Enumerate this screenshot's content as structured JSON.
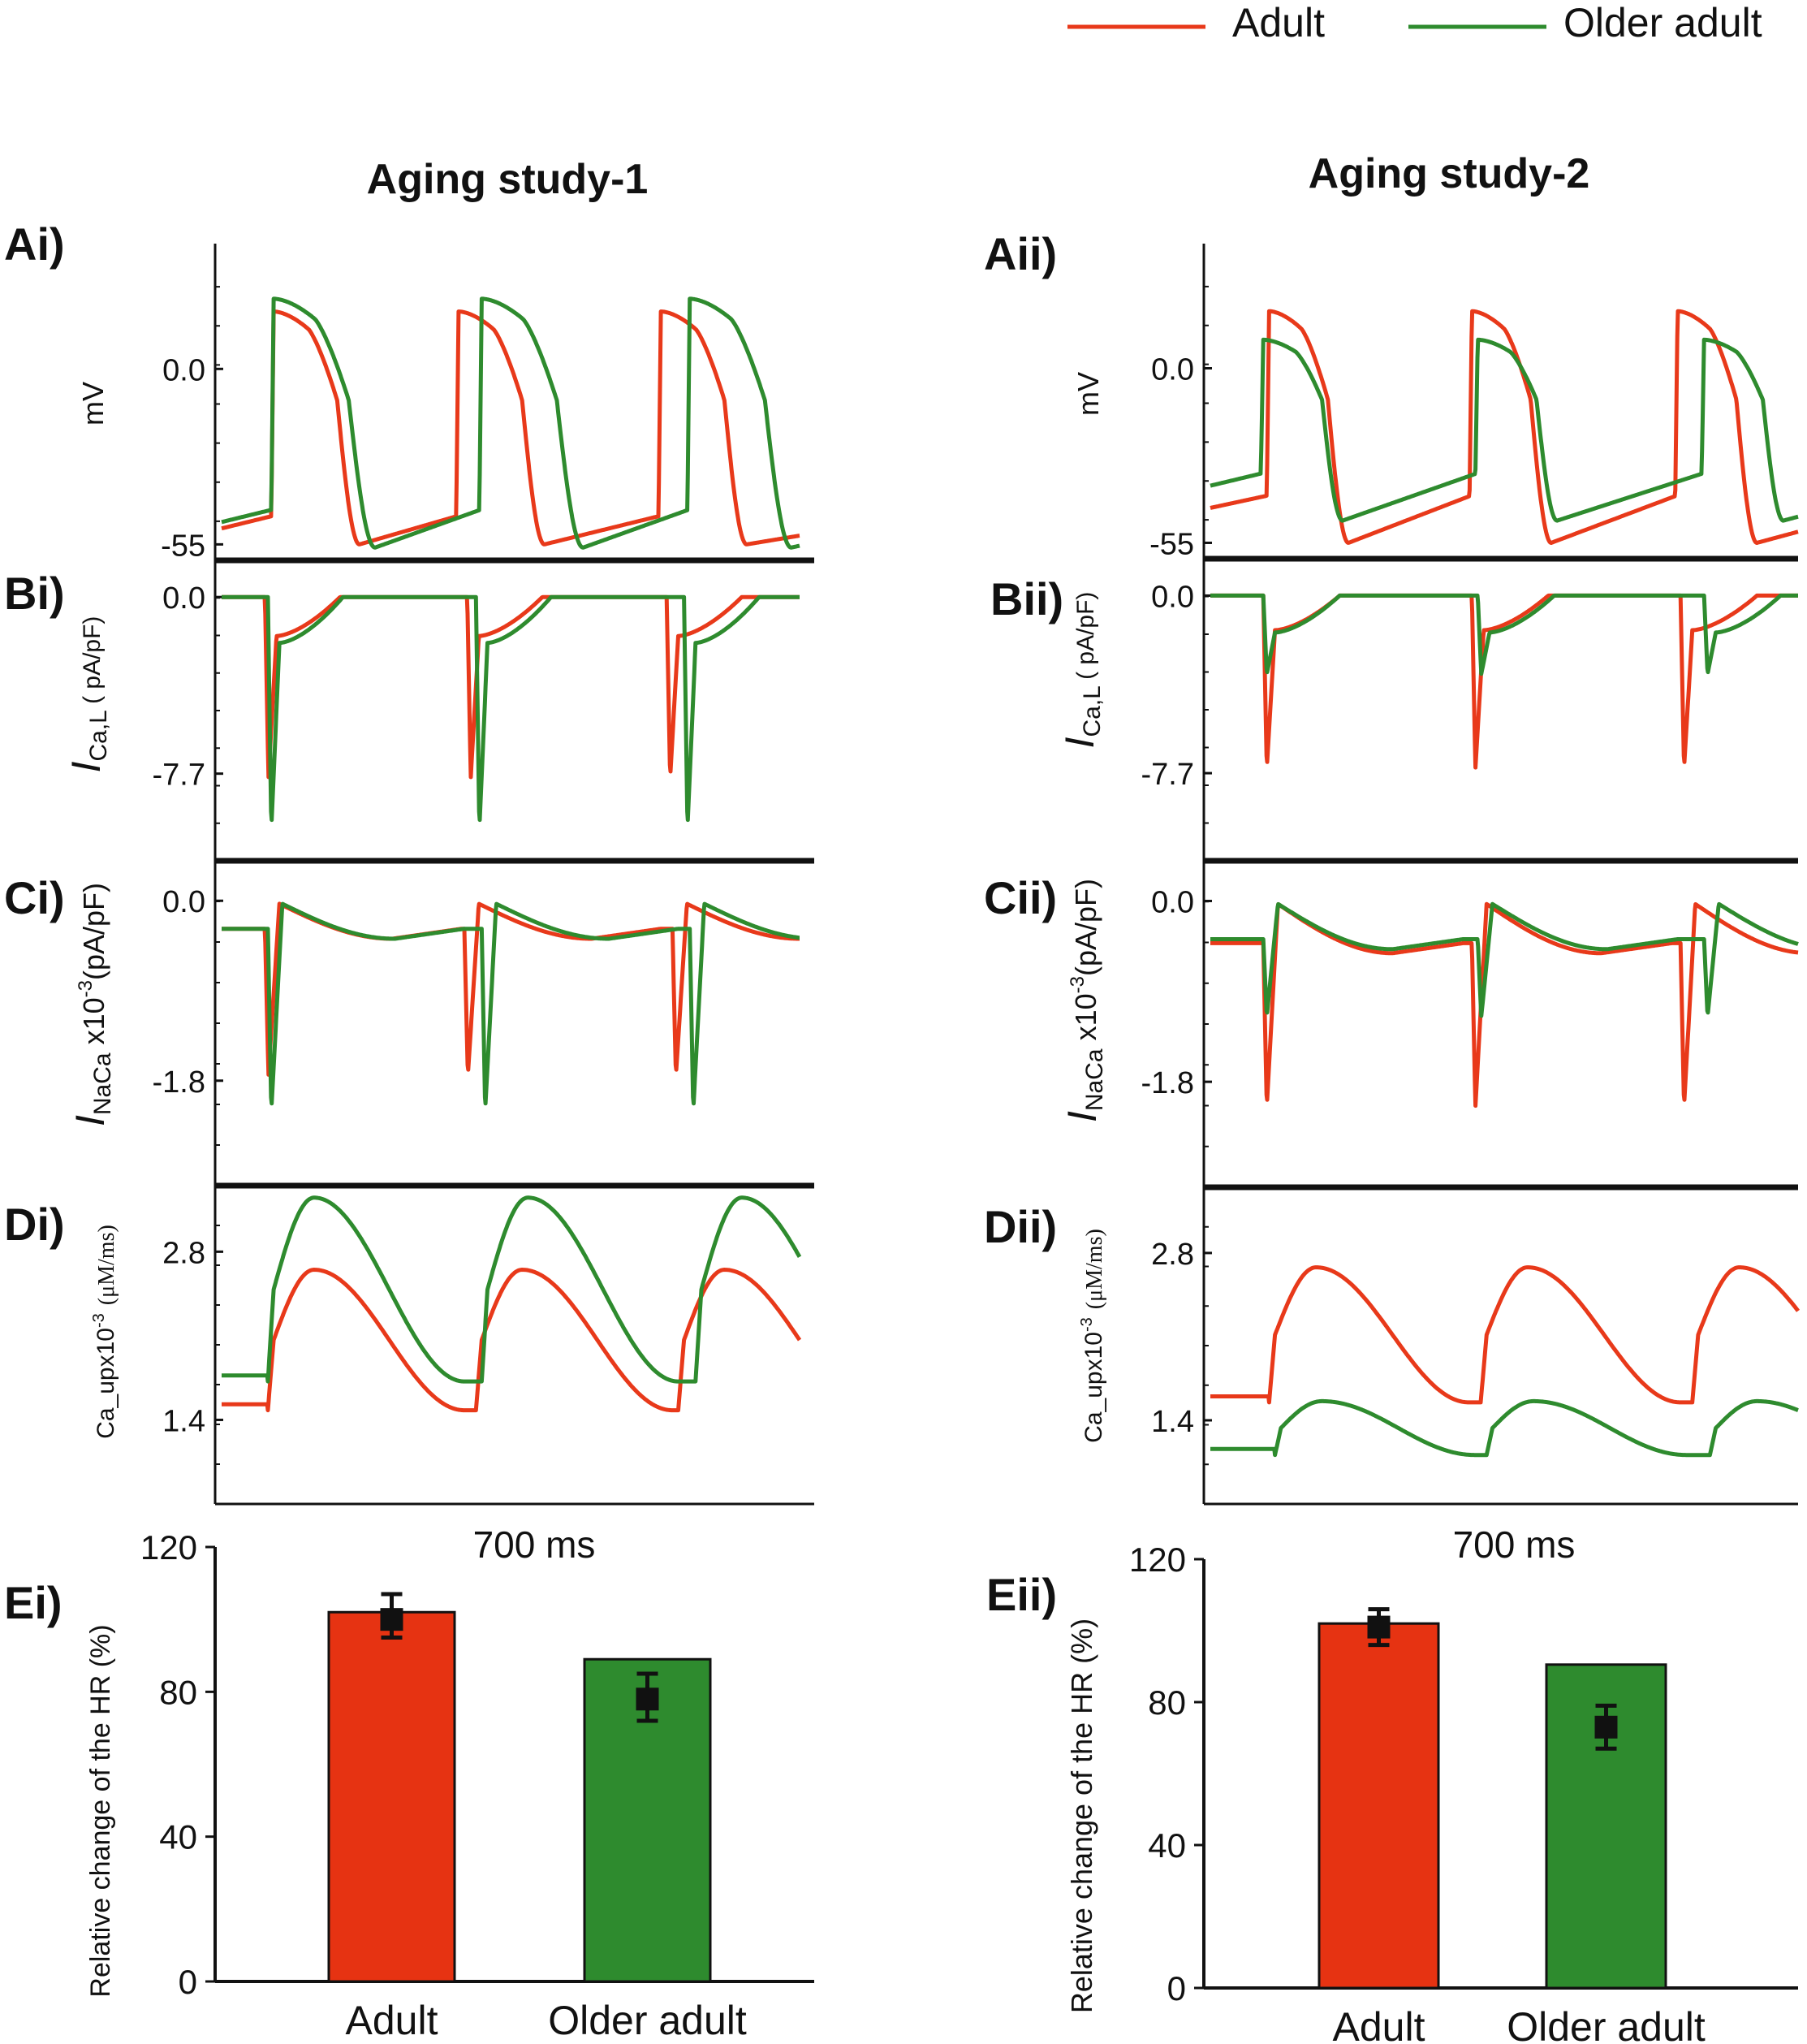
{
  "legend": {
    "entries": [
      {
        "name": "Adult",
        "color": "#e8391a"
      },
      {
        "name": "Older adult",
        "color": "#2e8b2e"
      }
    ]
  },
  "colors": {
    "adult": "#e8391a",
    "older": "#2e8b2e",
    "adult_bar": "#e63312",
    "older_bar": "#2e8b2e",
    "axis": "#111111"
  },
  "columns": [
    {
      "title": "Aging study-1",
      "time_label": "700 ms"
    },
    {
      "title": "Aging study-2",
      "time_label": "700 ms"
    }
  ],
  "ylabels": {
    "A": "mV",
    "B_main": "I",
    "B_sub": "Ca,L",
    "B_unit": " ( pA/pF)",
    "C_main": "I",
    "C_sub": "NaCa",
    "C_mid": " x10",
    "C_sup": "-3",
    "C_unit": "(pA/pF)",
    "D_main": "Ca_upx10",
    "D_sup": "-3",
    "D_unit": "(μM/ms)",
    "E": "Relative change of the HR (%)"
  },
  "panel_labels": {
    "col1": [
      "Ai)",
      "Bi)",
      "Ci)",
      "Di)",
      "Ei)"
    ],
    "col2": [
      "Aii)",
      "Bii)",
      "Cii)",
      "Dii)",
      "Eii)"
    ]
  },
  "chart_data": [
    {
      "id": "Ai",
      "type": "line",
      "ylabel": "mV",
      "ticks": [
        "0.0",
        "-55"
      ],
      "tick_values": [
        0,
        -55
      ],
      "ylim": [
        -60,
        38
      ],
      "series": [
        {
          "name": "Adult",
          "color": "#e8391a",
          "beat_times": [
            0.09,
            0.41,
            0.76
          ],
          "rest": -46,
          "peak": 18,
          "apd": 0.11,
          "valley": -55
        },
        {
          "name": "Older adult",
          "color": "#2e8b2e",
          "beat_times": [
            0.09,
            0.45,
            0.81
          ],
          "rest": -44,
          "peak": 22,
          "apd": 0.13,
          "valley": -56
        }
      ]
    },
    {
      "id": "Bi",
      "type": "line",
      "ylabel": "I Ca,L (pA/pF)",
      "ticks": [
        "0.0",
        "-7.7"
      ],
      "tick_values": [
        0,
        -7.7
      ],
      "ylim": [
        -11.5,
        1.6
      ],
      "series": [
        {
          "name": "Adult",
          "color": "#e8391a",
          "beat_times": [
            0.075,
            0.425,
            0.77
          ],
          "min": -7.9,
          "plateau": -1.7
        },
        {
          "name": "Older adult",
          "color": "#2e8b2e",
          "beat_times": [
            0.08,
            0.44,
            0.8
          ],
          "min": -10.1,
          "plateau": -2.0
        }
      ]
    },
    {
      "id": "Ci",
      "type": "line",
      "ylabel": "I NaCa x10^-3 (pA/pF)",
      "ticks": [
        "0.0",
        "-1.8"
      ],
      "tick_values": [
        0,
        -1.8
      ],
      "ylim": [
        -2.85,
        0.4
      ],
      "series": [
        {
          "name": "Adult",
          "color": "#e8391a",
          "beat_times": [
            0.075,
            0.42,
            0.78
          ],
          "min": -1.75,
          "baseline": -0.28
        },
        {
          "name": "Older adult",
          "color": "#2e8b2e",
          "beat_times": [
            0.08,
            0.45,
            0.81
          ],
          "min": -2.1,
          "baseline": -0.28
        }
      ]
    },
    {
      "id": "Di",
      "type": "line",
      "ylabel": "Ca_upx10^-3 (μM/ms)",
      "ticks": [
        "2.8",
        "1.4"
      ],
      "tick_values": [
        2.8,
        1.4
      ],
      "ylim": [
        0.7,
        3.35
      ],
      "series": [
        {
          "name": "Adult",
          "color": "#e8391a",
          "beat_times": [
            0.08,
            0.44,
            0.79
          ],
          "min": 1.48,
          "max": 2.65
        },
        {
          "name": "Older adult",
          "color": "#2e8b2e",
          "beat_times": [
            0.08,
            0.45,
            0.82
          ],
          "min": 1.72,
          "max": 3.25
        }
      ]
    },
    {
      "id": "Aii",
      "type": "line",
      "ylabel": "mV",
      "ticks": [
        "0.0",
        "-55"
      ],
      "tick_values": [
        0,
        -55
      ],
      "ylim": [
        -60,
        38
      ],
      "series": [
        {
          "name": "Adult",
          "color": "#e8391a",
          "beat_times": [
            0.1,
            0.445,
            0.795
          ],
          "rest": -40,
          "peak": 18,
          "apd": 0.1,
          "valley": -55
        },
        {
          "name": "Older adult",
          "color": "#2e8b2e",
          "beat_times": [
            0.09,
            0.455,
            0.84
          ],
          "rest": -33,
          "peak": 9,
          "apd": 0.1,
          "valley": -48
        }
      ]
    },
    {
      "id": "Bii",
      "type": "line",
      "ylabel": "I Ca,L (pA/pF)",
      "ticks": [
        "0.0",
        "-7.7"
      ],
      "tick_values": [
        0,
        -7.7
      ],
      "ylim": [
        -11.5,
        1.6
      ],
      "series": [
        {
          "name": "Adult",
          "color": "#e8391a",
          "beat_times": [
            0.09,
            0.445,
            0.8
          ],
          "min": -7.5,
          "plateau": -1.5
        },
        {
          "name": "Older adult",
          "color": "#2e8b2e",
          "beat_times": [
            0.09,
            0.455,
            0.84
          ],
          "min": -3.4,
          "plateau": -1.6
        }
      ]
    },
    {
      "id": "Cii",
      "type": "line",
      "ylabel": "I NaCa x10^-3 (pA/pF)",
      "ticks": [
        "0.0",
        "-1.8"
      ],
      "tick_values": [
        0,
        -1.8
      ],
      "ylim": [
        -2.85,
        0.4
      ],
      "series": [
        {
          "name": "Adult",
          "color": "#e8391a",
          "beat_times": [
            0.09,
            0.445,
            0.8
          ],
          "min": -2.05,
          "baseline": -0.42
        },
        {
          "name": "Older adult",
          "color": "#2e8b2e",
          "beat_times": [
            0.09,
            0.455,
            0.84
          ],
          "min": -1.15,
          "baseline": -0.38
        }
      ]
    },
    {
      "id": "Dii",
      "type": "line",
      "ylabel": "Ca_upx10^-3 (μM/ms)",
      "ticks": [
        "2.8",
        "1.4"
      ],
      "tick_values": [
        2.8,
        1.4
      ],
      "ylim": [
        0.7,
        3.35
      ],
      "series": [
        {
          "name": "Adult",
          "color": "#e8391a",
          "beat_times": [
            0.1,
            0.46,
            0.82
          ],
          "min": 1.55,
          "max": 2.68
        },
        {
          "name": "Older adult",
          "color": "#2e8b2e",
          "beat_times": [
            0.11,
            0.47,
            0.85
          ],
          "min": 1.11,
          "max": 1.56
        }
      ]
    },
    {
      "id": "Ei",
      "type": "bar",
      "ylabel": "Relative change of the HR (%)",
      "ylim": [
        0,
        120
      ],
      "yticks": [
        0,
        40,
        80,
        120
      ],
      "categories": [
        "Adult",
        "Older adult"
      ],
      "values": [
        102,
        89
      ],
      "markers": [
        100,
        78
      ],
      "errors": [
        [
          95,
          107
        ],
        [
          72,
          85
        ]
      ]
    },
    {
      "id": "Eii",
      "type": "bar",
      "ylabel": "Relative change of the HR (%)",
      "ylim": [
        0,
        120
      ],
      "yticks": [
        0,
        40,
        80,
        120
      ],
      "categories": [
        "Adult",
        "Older adult"
      ],
      "values": [
        102,
        90.5
      ],
      "markers": [
        101,
        73
      ],
      "errors": [
        [
          96,
          106
        ],
        [
          67,
          79
        ]
      ]
    }
  ]
}
